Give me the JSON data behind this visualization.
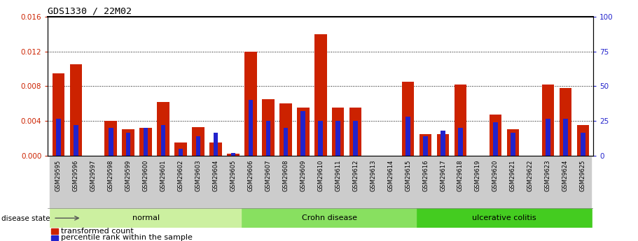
{
  "title": "GDS1330 / 22M02",
  "samples": [
    "GSM29595",
    "GSM29596",
    "GSM29597",
    "GSM29598",
    "GSM29599",
    "GSM29600",
    "GSM29601",
    "GSM29602",
    "GSM29603",
    "GSM29604",
    "GSM29605",
    "GSM29606",
    "GSM29607",
    "GSM29608",
    "GSM29609",
    "GSM29610",
    "GSM29611",
    "GSM29612",
    "GSM29613",
    "GSM29614",
    "GSM29615",
    "GSM29616",
    "GSM29617",
    "GSM29618",
    "GSM29619",
    "GSM29620",
    "GSM29621",
    "GSM29622",
    "GSM29623",
    "GSM29624",
    "GSM29625"
  ],
  "red_values": [
    0.0095,
    0.0105,
    0.0,
    0.004,
    0.003,
    0.0032,
    0.0062,
    0.0015,
    0.0033,
    0.0015,
    0.0002,
    0.012,
    0.0065,
    0.006,
    0.0055,
    0.014,
    0.0055,
    0.0055,
    0.0,
    0.0,
    0.0085,
    0.0025,
    0.0025,
    0.0082,
    0.0,
    0.0047,
    0.003,
    0.0,
    0.0082,
    0.0078,
    0.0035
  ],
  "blue_values": [
    0.0042,
    0.0035,
    0.0,
    0.0032,
    0.0026,
    0.0032,
    0.0035,
    0.0008,
    0.0022,
    0.0026,
    0.0003,
    0.0064,
    0.004,
    0.0032,
    0.0051,
    0.004,
    0.004,
    0.004,
    0.0,
    0.0,
    0.0045,
    0.0022,
    0.0029,
    0.0032,
    0.0,
    0.0038,
    0.0026,
    0.0,
    0.0042,
    0.0042,
    0.0026
  ],
  "groups": [
    {
      "label": "normal",
      "start": 0,
      "end": 10,
      "color": "#ccf0a0"
    },
    {
      "label": "Crohn disease",
      "start": 11,
      "end": 20,
      "color": "#88e060"
    },
    {
      "label": "ulcerative colitis",
      "start": 21,
      "end": 30,
      "color": "#44cc20"
    }
  ],
  "ylim_left": [
    0,
    0.016
  ],
  "ylim_right": [
    0,
    100
  ],
  "yticks_left": [
    0,
    0.004,
    0.008,
    0.012,
    0.016
  ],
  "yticks_right": [
    0,
    25,
    50,
    75,
    100
  ],
  "bar_color_red": "#cc2200",
  "bar_color_blue": "#2222cc",
  "bg_color": "white",
  "tick_bg_color": "#cccccc",
  "legend_red": "transformed count",
  "legend_blue": "percentile rank within the sample",
  "disease_state_label": "disease state"
}
